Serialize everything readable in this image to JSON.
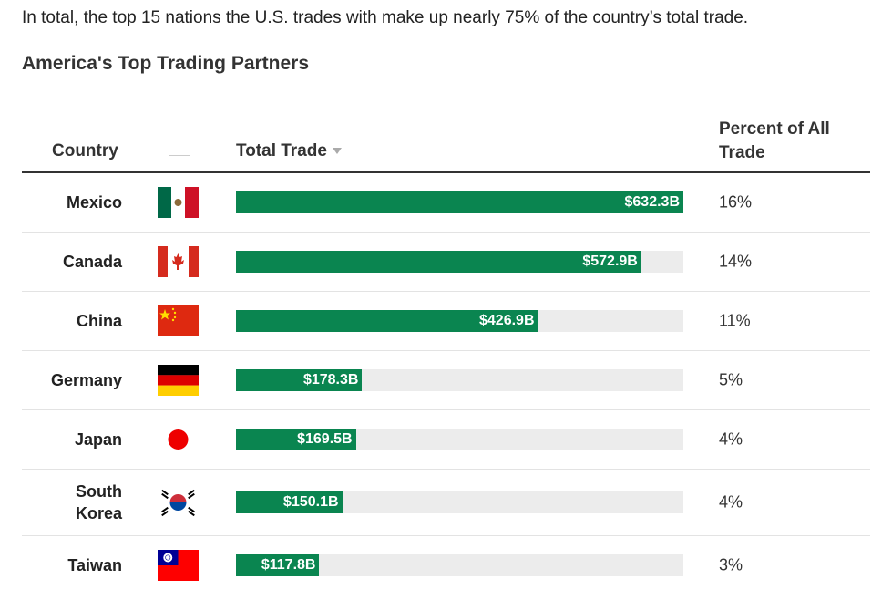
{
  "intro": "In total, the top 15 nations the U.S. trades with make up nearly 75% of the country’s total trade.",
  "title": "America's Top Trading Partners",
  "table": {
    "headers": {
      "country": "Country",
      "total_trade": "Total Trade",
      "percent": "Percent of All Trade"
    },
    "rows": [
      {
        "country": "Mexico",
        "total_trade": 632.3,
        "total_trade_label": "$632.3B",
        "percent": "16%"
      },
      {
        "country": "Canada",
        "total_trade": 572.9,
        "total_trade_label": "$572.9B",
        "percent": "14%"
      },
      {
        "country": "China",
        "total_trade": 426.9,
        "total_trade_label": "$426.9B",
        "percent": "11%"
      },
      {
        "country": "Germany",
        "total_trade": 178.3,
        "total_trade_label": "$178.3B",
        "percent": "5%"
      },
      {
        "country": "Japan",
        "total_trade": 169.5,
        "total_trade_label": "$169.5B",
        "percent": "4%"
      },
      {
        "country": "South Korea",
        "total_trade": 150.1,
        "total_trade_label": "$150.1B",
        "percent": "4%"
      },
      {
        "country": "Taiwan",
        "total_trade": 117.8,
        "total_trade_label": "$117.8B",
        "percent": "3%"
      }
    ]
  }
}
